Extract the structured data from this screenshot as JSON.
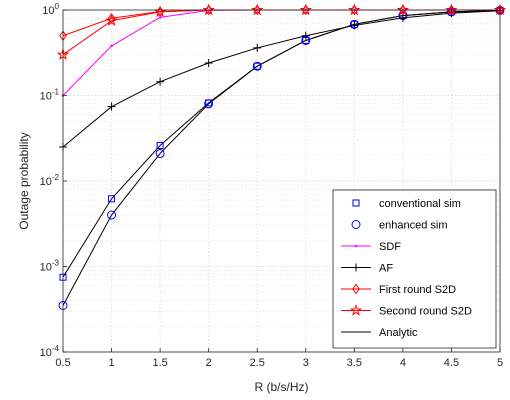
{
  "chart_data": {
    "type": "line",
    "xlabel": "R (b/s/Hz)",
    "ylabel": "Outage probability",
    "xlim": [
      0.5,
      5
    ],
    "ylim": [
      0.0001,
      1
    ],
    "yscale": "log",
    "grid": true,
    "legend_position": "bottom-right",
    "x_ticks": [
      0.5,
      1,
      1.5,
      2,
      2.5,
      3,
      3.5,
      4,
      4.5,
      5
    ],
    "x_tick_labels": [
      "0.5",
      "1",
      "1.5",
      "2",
      "2.5",
      "3",
      "3.5",
      "4",
      "4.5",
      "5"
    ],
    "y_ticks": [
      {
        "value": 0.0001,
        "base": "10",
        "exp": "-4"
      },
      {
        "value": 0.001,
        "base": "10",
        "exp": "-3"
      },
      {
        "value": 0.01,
        "base": "10",
        "exp": "-2"
      },
      {
        "value": 0.1,
        "base": "10",
        "exp": "-1"
      },
      {
        "value": 1,
        "base": "10",
        "exp": "0"
      }
    ],
    "x": [
      0.5,
      1,
      1.5,
      2,
      2.5,
      3,
      3.5,
      4,
      4.5,
      5
    ],
    "series": [
      {
        "name": "conventional sim",
        "marker": "square",
        "line": false,
        "color": "#0000ff",
        "values": [
          0.00075,
          0.0062,
          0.026,
          0.082,
          0.22,
          0.44,
          0.68,
          0.86,
          0.95,
          0.99
        ]
      },
      {
        "name": "enhanced sim",
        "marker": "circle",
        "line": false,
        "color": "#0000ff",
        "values": [
          0.00035,
          0.004,
          0.021,
          0.08,
          0.22,
          0.44,
          0.68,
          0.86,
          0.95,
          0.99
        ]
      },
      {
        "name": "SDF",
        "marker": "point",
        "line": true,
        "color": "#ff00ff",
        "values": [
          0.1,
          0.38,
          0.82,
          0.99,
          1.0,
          1.0,
          1.0,
          1.0,
          1.0,
          1.0
        ]
      },
      {
        "name": "AF",
        "marker": "plus",
        "line": true,
        "color": "#000000",
        "values": [
          0.025,
          0.074,
          0.145,
          0.24,
          0.36,
          0.5,
          0.66,
          0.81,
          0.92,
          0.98
        ]
      },
      {
        "name": "First round S2D",
        "marker": "diamond",
        "line": true,
        "color": "#ff0000",
        "values": [
          0.5,
          0.8,
          0.96,
          1.0,
          1.0,
          1.0,
          1.0,
          1.0,
          1.0,
          1.0
        ]
      },
      {
        "name": "Second round S2D",
        "marker": "star",
        "line": true,
        "color": "#ff0000",
        "values": [
          0.3,
          0.75,
          0.95,
          1.0,
          1.0,
          1.0,
          1.0,
          1.0,
          1.0,
          1.0
        ]
      },
      {
        "name": "Analytic",
        "marker": "none",
        "line": true,
        "color": "#000000",
        "curves": [
          [
            0.00075,
            0.0062,
            0.026,
            0.082,
            0.22,
            0.44,
            0.68,
            0.86,
            0.95,
            0.99
          ],
          [
            0.00035,
            0.004,
            0.021,
            0.08,
            0.22,
            0.44,
            0.68,
            0.86,
            0.95,
            0.99
          ]
        ]
      }
    ]
  }
}
